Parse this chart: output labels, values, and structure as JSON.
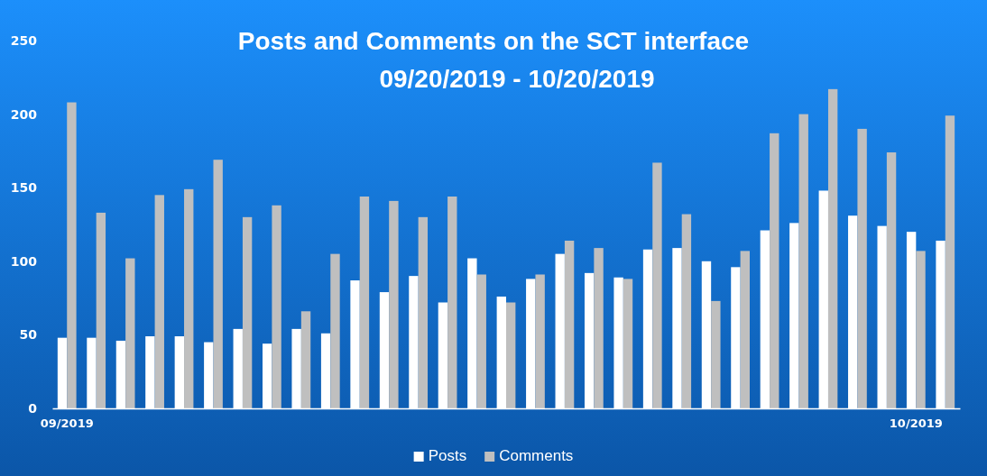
{
  "chart_data": {
    "type": "bar",
    "title": "Posts and Comments on the SCT interface",
    "subtitle": "09/20/2019 - 10/20/2019",
    "categories": [
      "09/2019",
      null,
      null,
      null,
      null,
      null,
      null,
      null,
      null,
      null,
      null,
      null,
      null,
      null,
      null,
      null,
      null,
      null,
      null,
      null,
      null,
      null,
      null,
      null,
      null,
      null,
      null,
      null,
      null,
      "10/2019",
      null
    ],
    "series": [
      {
        "name": "Posts",
        "color": "#ffffff",
        "values": [
          48,
          48,
          46,
          49,
          49,
          45,
          54,
          44,
          54,
          51,
          87,
          79,
          90,
          72,
          102,
          76,
          88,
          105,
          92,
          89,
          108,
          109,
          100,
          96,
          121,
          126,
          148,
          131,
          124,
          120,
          114
        ]
      },
      {
        "name": "Comments",
        "color": "#bfbfbf",
        "values": [
          208,
          133,
          102,
          145,
          149,
          169,
          130,
          138,
          66,
          105,
          144,
          141,
          130,
          144,
          91,
          72,
          91,
          114,
          109,
          88,
          167,
          132,
          73,
          107,
          187,
          200,
          217,
          190,
          174,
          107,
          199
        ]
      }
    ],
    "ylim": [
      0,
      250
    ],
    "yticks": [
      0,
      50,
      100,
      150,
      200,
      250
    ],
    "grid": false,
    "legend": "bottom"
  }
}
